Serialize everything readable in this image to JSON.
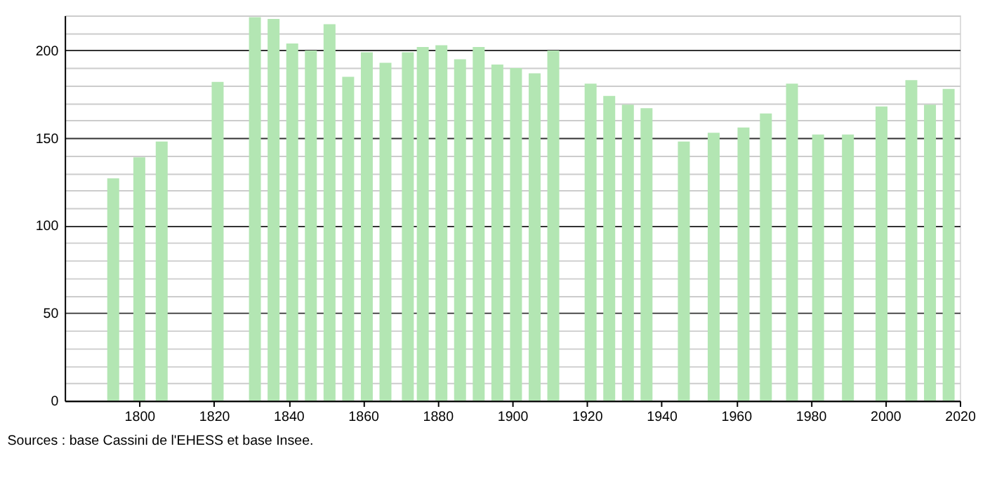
{
  "chart_data": {
    "type": "bar",
    "x": [
      1793,
      1800,
      1806,
      1821,
      1831,
      1836,
      1841,
      1846,
      1851,
      1856,
      1861,
      1866,
      1872,
      1876,
      1881,
      1886,
      1891,
      1896,
      1901,
      1906,
      1911,
      1921,
      1926,
      1931,
      1936,
      1946,
      1954,
      1962,
      1968,
      1975,
      1982,
      1990,
      1999,
      2007,
      2012,
      2017
    ],
    "series": [
      {
        "color": "#b3e6b3",
        "values": [
          127,
          139,
          148,
          182,
          219,
          218,
          204,
          200,
          215,
          185,
          199,
          193,
          199,
          202,
          203,
          195,
          202,
          192,
          190,
          187,
          200,
          181,
          174,
          169,
          167,
          148,
          153,
          156,
          164,
          181,
          152,
          152,
          168,
          183,
          169,
          178
        ]
      }
    ],
    "xlim": [
      1780,
      2020
    ],
    "xticks": [
      1800,
      1820,
      1840,
      1860,
      1880,
      1900,
      1920,
      1940,
      1960,
      1980,
      2000,
      2020
    ],
    "ylim": [
      0,
      220
    ],
    "yticks": [
      0,
      {
        "value": 10,
        "label": null
      },
      {
        "value": 20,
        "label": null
      },
      {
        "value": 30,
        "label": null
      },
      {
        "value": 40,
        "label": null
      },
      50,
      {
        "value": 60,
        "label": null
      },
      {
        "value": 70,
        "label": null
      },
      {
        "value": 80,
        "label": null
      },
      {
        "value": 90,
        "label": null
      },
      100,
      {
        "value": 110,
        "label": null
      },
      {
        "value": 120,
        "label": null
      },
      {
        "value": 130,
        "label": null
      },
      {
        "value": 140,
        "label": null
      },
      150,
      {
        "value": 160,
        "label": null
      },
      {
        "value": 170,
        "label": null
      },
      {
        "value": 180,
        "label": null
      },
      {
        "value": 190,
        "label": null
      },
      200,
      {
        "value": 210,
        "label": null
      },
      {
        "value": 220,
        "label": null
      }
    ],
    "grid": "y",
    "annotations": [
      "Sources : base Cassini de l'EHESS et base Insee."
    ]
  }
}
